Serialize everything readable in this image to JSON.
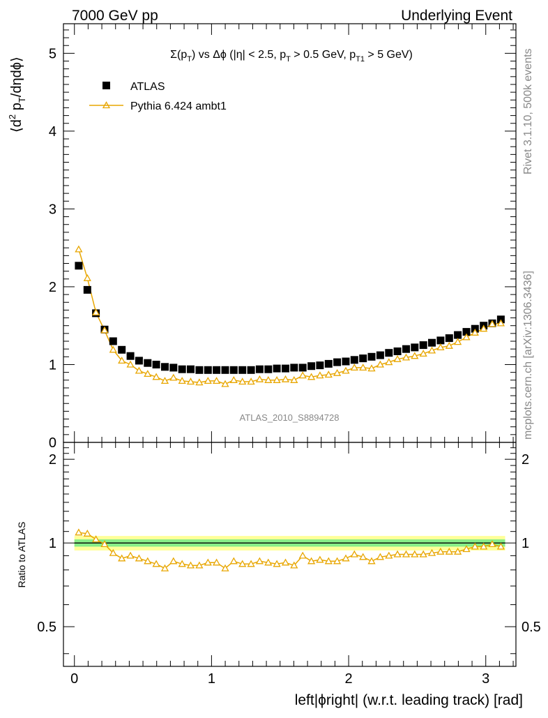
{
  "header": {
    "left": "7000 GeV pp",
    "right": "Underlying Event"
  },
  "side_labels": {
    "rivet": "Rivet 3.1.10,  500k events",
    "mcplots": "mcplots.cern.ch [arXiv:1306.3436]"
  },
  "analysis_label": "ATLAS_2010_S8894728",
  "chart_data": [
    {
      "type": "scatter",
      "panel": "main",
      "title": {
        "sigma": "Σ(p",
        "sigma_sub": "T",
        "vs": ") vs Δϕ (|η| < 2.5, p",
        "vs_sub": "T",
        "cut": " > 0.5 GeV, p",
        "cut_sub": "T1",
        "end": " > 5 GeV)"
      },
      "ylabel": {
        "open": "⟨d",
        "sup": "2",
        "mid": " p",
        "sub": "T",
        "close": "/dηdϕ⟩"
      },
      "xlim": [
        -0.08,
        3.22
      ],
      "ylim": [
        0,
        5.38
      ],
      "yticks": [
        {
          "value": 0,
          "label": "0"
        },
        {
          "value": 1,
          "label": "1"
        },
        {
          "value": 2,
          "label": "2"
        },
        {
          "value": 3,
          "label": "3"
        },
        {
          "value": 4,
          "label": "4"
        },
        {
          "value": 5,
          "label": "5"
        }
      ],
      "legend_position": "top-left",
      "x": [
        0.0314,
        0.0942,
        0.1571,
        0.2199,
        0.2827,
        0.3456,
        0.4084,
        0.4712,
        0.5341,
        0.5969,
        0.6597,
        0.7226,
        0.7854,
        0.8482,
        0.9111,
        0.9739,
        1.0367,
        1.0996,
        1.1624,
        1.2252,
        1.2881,
        1.3509,
        1.4137,
        1.4765,
        1.5394,
        1.6022,
        1.665,
        1.7279,
        1.7907,
        1.8535,
        1.9164,
        1.9792,
        2.042,
        2.1049,
        2.1677,
        2.2305,
        2.2934,
        2.3562,
        2.419,
        2.4819,
        2.5447,
        2.6075,
        2.6704,
        2.7332,
        2.796,
        2.8588,
        2.9217,
        2.9845,
        3.0473,
        3.1102
      ],
      "series": [
        {
          "name": "ATLAS",
          "color": "#000000",
          "marker": "square",
          "values": [
            2.27,
            1.96,
            1.66,
            1.45,
            1.3,
            1.19,
            1.11,
            1.05,
            1.02,
            1.0,
            0.97,
            0.96,
            0.94,
            0.94,
            0.93,
            0.93,
            0.93,
            0.93,
            0.93,
            0.93,
            0.93,
            0.94,
            0.94,
            0.95,
            0.95,
            0.96,
            0.96,
            0.98,
            0.99,
            1.01,
            1.03,
            1.04,
            1.06,
            1.08,
            1.1,
            1.12,
            1.15,
            1.17,
            1.2,
            1.22,
            1.25,
            1.28,
            1.31,
            1.34,
            1.38,
            1.42,
            1.46,
            1.5,
            1.53,
            1.58
          ]
        },
        {
          "name": "Pythia 6.424 ambt1",
          "color": "#e8a600",
          "marker": "triangle",
          "values": [
            2.48,
            2.11,
            1.67,
            1.44,
            1.19,
            1.05,
            1.0,
            0.92,
            0.88,
            0.84,
            0.79,
            0.83,
            0.79,
            0.78,
            0.77,
            0.79,
            0.79,
            0.75,
            0.8,
            0.78,
            0.78,
            0.81,
            0.8,
            0.8,
            0.81,
            0.8,
            0.86,
            0.84,
            0.86,
            0.87,
            0.89,
            0.92,
            0.96,
            0.96,
            0.95,
            1.0,
            1.03,
            1.07,
            1.09,
            1.11,
            1.14,
            1.18,
            1.22,
            1.24,
            1.29,
            1.35,
            1.41,
            1.46,
            1.52,
            1.53
          ]
        }
      ]
    },
    {
      "type": "line",
      "panel": "ratio",
      "ylabel": "Ratio to ATLAS",
      "xlabel": "left|ϕright| (w.r.t. leading track) [rad]",
      "xlim": [
        -0.08,
        3.22
      ],
      "ylim": [
        0.36,
        2.3
      ],
      "yticks": [
        {
          "value": 0.5,
          "label": "0.5"
        },
        {
          "value": 1,
          "label": "1"
        },
        {
          "value": 2,
          "label": "2"
        }
      ],
      "xticks": [
        {
          "value": 0,
          "label": "0"
        },
        {
          "value": 1,
          "label": "1"
        },
        {
          "value": 2,
          "label": "2"
        },
        {
          "value": 3,
          "label": "3"
        }
      ],
      "bands": [
        {
          "low": 0.94,
          "high": 1.06,
          "color": "#ffff99"
        },
        {
          "low": 0.97,
          "high": 1.03,
          "color": "#88ee88"
        }
      ],
      "reference": 1.0,
      "series": [
        {
          "name": "Pythia 6.424 ambt1",
          "color": "#e8a600",
          "values": [
            1.09,
            1.08,
            1.03,
            0.99,
            0.92,
            0.88,
            0.9,
            0.88,
            0.86,
            0.84,
            0.81,
            0.86,
            0.84,
            0.83,
            0.83,
            0.85,
            0.85,
            0.81,
            0.86,
            0.84,
            0.84,
            0.86,
            0.85,
            0.84,
            0.85,
            0.83,
            0.9,
            0.86,
            0.87,
            0.86,
            0.86,
            0.88,
            0.91,
            0.89,
            0.86,
            0.89,
            0.9,
            0.91,
            0.91,
            0.91,
            0.91,
            0.92,
            0.93,
            0.93,
            0.93,
            0.95,
            0.97,
            0.97,
            0.99,
            0.97
          ]
        }
      ]
    }
  ]
}
